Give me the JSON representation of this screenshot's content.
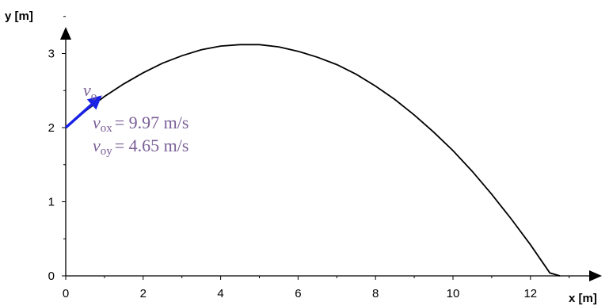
{
  "chart_data": {
    "type": "line",
    "title": "",
    "xlabel": "x [m]",
    "ylabel": "y [m]",
    "xlim": [
      0,
      13.4
    ],
    "ylim": [
      0,
      3.6
    ],
    "xticks": [
      0,
      2,
      4,
      6,
      8,
      10,
      12
    ],
    "yticks": [
      0,
      1,
      2,
      3
    ],
    "xticklabels": [
      "0",
      "2",
      "4",
      "6",
      "8",
      "10",
      "12"
    ],
    "yticklabels": [
      "0",
      "1",
      "2",
      "3"
    ],
    "grid": false,
    "series": [
      {
        "name": "",
        "color": "#000000",
        "x": [
          0,
          0.5,
          1,
          1.5,
          2,
          2.5,
          3,
          3.5,
          4,
          4.5,
          4.73,
          5,
          5.5,
          6,
          6.5,
          7,
          7.5,
          8,
          8.5,
          9,
          9.5,
          10,
          10.5,
          11,
          11.5,
          12,
          12.5,
          12.76
        ],
        "y": [
          2.0,
          2.22,
          2.42,
          2.59,
          2.74,
          2.87,
          2.97,
          3.05,
          3.1,
          3.12,
          3.12,
          3.12,
          3.09,
          3.03,
          2.95,
          2.85,
          2.72,
          2.56,
          2.38,
          2.17,
          1.94,
          1.69,
          1.41,
          1.1,
          0.77,
          0.42,
          0.04,
          0.0
        ]
      }
    ],
    "annotations": {
      "vector_color": "#1a22e6",
      "vector_start": [
        0,
        2.0
      ],
      "vector_end": [
        0.88,
        2.41
      ],
      "v0_symbol": "v",
      "v0_sub": "o",
      "vox_symbol": "v",
      "vox_sub": "ox",
      "vox_value": "= 9.97 m/s",
      "voy_symbol": "v",
      "voy_sub": "oy",
      "voy_value": "= 4.65 m/s",
      "text_color": "#7a5f96"
    }
  }
}
